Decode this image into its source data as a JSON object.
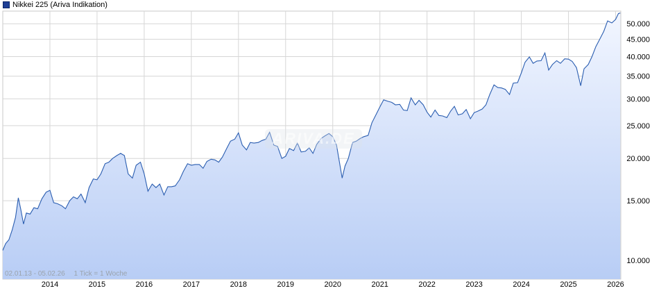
{
  "legend": {
    "label": "Nikkei 225 (Ariva Indikation)",
    "color": "#1f3f95"
  },
  "footer": {
    "range": "02.01.13 - 05.02.26",
    "tick": "1 Tick = 1 Woche"
  },
  "colors": {
    "line": "#2a5db0",
    "fill_top": "#f2f6ff",
    "fill_bottom": "#b8cdf5",
    "grid": "#d6d6d6"
  },
  "chart_data": {
    "type": "area",
    "yscale": "log",
    "ylim": [
      8800,
      54500
    ],
    "xlim": [
      2013.0,
      2026.11
    ],
    "ylabels": [
      {
        "v": 10000,
        "t": "10.000"
      },
      {
        "v": 15000,
        "t": "15.000"
      },
      {
        "v": 20000,
        "t": "20.000"
      },
      {
        "v": 25000,
        "t": "25.000"
      },
      {
        "v": 30000,
        "t": "30.000"
      },
      {
        "v": 35000,
        "t": "35.000"
      },
      {
        "v": 40000,
        "t": "40.000"
      },
      {
        "v": 45000,
        "t": "45.000"
      },
      {
        "v": 50000,
        "t": "50.000"
      }
    ],
    "xticks": [
      "2014",
      "2015",
      "2016",
      "2017",
      "2018",
      "2019",
      "2020",
      "2021",
      "2022",
      "2023",
      "2024",
      "2025",
      "2026"
    ],
    "series": [
      {
        "points": [
          [
            2013.0,
            10700
          ],
          [
            2013.06,
            11200
          ],
          [
            2013.13,
            11500
          ],
          [
            2013.2,
            12300
          ],
          [
            2013.27,
            13400
          ],
          [
            2013.33,
            15300
          ],
          [
            2013.38,
            14200
          ],
          [
            2013.44,
            12800
          ],
          [
            2013.5,
            13800
          ],
          [
            2013.58,
            13700
          ],
          [
            2013.66,
            14300
          ],
          [
            2013.74,
            14200
          ],
          [
            2013.83,
            15200
          ],
          [
            2013.92,
            15900
          ],
          [
            2014.0,
            16100
          ],
          [
            2014.08,
            14800
          ],
          [
            2014.16,
            14700
          ],
          [
            2014.25,
            14500
          ],
          [
            2014.33,
            14200
          ],
          [
            2014.42,
            15000
          ],
          [
            2014.5,
            15400
          ],
          [
            2014.58,
            15200
          ],
          [
            2014.66,
            15700
          ],
          [
            2014.75,
            14800
          ],
          [
            2014.83,
            16400
          ],
          [
            2014.92,
            17400
          ],
          [
            2015.0,
            17300
          ],
          [
            2015.08,
            18000
          ],
          [
            2015.17,
            19300
          ],
          [
            2015.25,
            19500
          ],
          [
            2015.33,
            20000
          ],
          [
            2015.42,
            20400
          ],
          [
            2015.5,
            20700
          ],
          [
            2015.58,
            20400
          ],
          [
            2015.66,
            18000
          ],
          [
            2015.75,
            17500
          ],
          [
            2015.83,
            19100
          ],
          [
            2015.92,
            19500
          ],
          [
            2016.0,
            18000
          ],
          [
            2016.08,
            16000
          ],
          [
            2016.17,
            16800
          ],
          [
            2016.25,
            16400
          ],
          [
            2016.33,
            16800
          ],
          [
            2016.42,
            15600
          ],
          [
            2016.5,
            16500
          ],
          [
            2016.58,
            16500
          ],
          [
            2016.66,
            16600
          ],
          [
            2016.75,
            17300
          ],
          [
            2016.83,
            18300
          ],
          [
            2016.92,
            19300
          ],
          [
            2017.0,
            19100
          ],
          [
            2017.08,
            19200
          ],
          [
            2017.17,
            19200
          ],
          [
            2017.25,
            18700
          ],
          [
            2017.33,
            19600
          ],
          [
            2017.42,
            19900
          ],
          [
            2017.5,
            19800
          ],
          [
            2017.58,
            19500
          ],
          [
            2017.66,
            20200
          ],
          [
            2017.75,
            21400
          ],
          [
            2017.83,
            22500
          ],
          [
            2017.92,
            22800
          ],
          [
            2018.0,
            23800
          ],
          [
            2018.08,
            21900
          ],
          [
            2018.17,
            21200
          ],
          [
            2018.25,
            22300
          ],
          [
            2018.33,
            22200
          ],
          [
            2018.42,
            22300
          ],
          [
            2018.5,
            22600
          ],
          [
            2018.58,
            22800
          ],
          [
            2018.66,
            23900
          ],
          [
            2018.75,
            21900
          ],
          [
            2018.83,
            21700
          ],
          [
            2018.92,
            20000
          ],
          [
            2019.0,
            20300
          ],
          [
            2019.08,
            21400
          ],
          [
            2019.17,
            21100
          ],
          [
            2019.25,
            22200
          ],
          [
            2019.33,
            20900
          ],
          [
            2019.42,
            21000
          ],
          [
            2019.5,
            21500
          ],
          [
            2019.58,
            20700
          ],
          [
            2019.66,
            22000
          ],
          [
            2019.75,
            22900
          ],
          [
            2019.83,
            23300
          ],
          [
            2019.92,
            23700
          ],
          [
            2020.0,
            23200
          ],
          [
            2020.08,
            21900
          ],
          [
            2020.2,
            17500
          ],
          [
            2020.26,
            19000
          ],
          [
            2020.33,
            20000
          ],
          [
            2020.42,
            22300
          ],
          [
            2020.5,
            22500
          ],
          [
            2020.58,
            22900
          ],
          [
            2020.66,
            23200
          ],
          [
            2020.75,
            23400
          ],
          [
            2020.83,
            25500
          ],
          [
            2020.92,
            27000
          ],
          [
            2021.0,
            28400
          ],
          [
            2021.08,
            29800
          ],
          [
            2021.17,
            29500
          ],
          [
            2021.25,
            29300
          ],
          [
            2021.33,
            28800
          ],
          [
            2021.42,
            28900
          ],
          [
            2021.5,
            27800
          ],
          [
            2021.58,
            27700
          ],
          [
            2021.66,
            30200
          ],
          [
            2021.75,
            28800
          ],
          [
            2021.83,
            29700
          ],
          [
            2021.92,
            28800
          ],
          [
            2022.0,
            27400
          ],
          [
            2022.08,
            26500
          ],
          [
            2022.17,
            27800
          ],
          [
            2022.25,
            26800
          ],
          [
            2022.33,
            26700
          ],
          [
            2022.42,
            26400
          ],
          [
            2022.5,
            27600
          ],
          [
            2022.58,
            28500
          ],
          [
            2022.66,
            26900
          ],
          [
            2022.75,
            27100
          ],
          [
            2022.83,
            27900
          ],
          [
            2022.92,
            26200
          ],
          [
            2023.0,
            27300
          ],
          [
            2023.08,
            27600
          ],
          [
            2023.17,
            28000
          ],
          [
            2023.25,
            28800
          ],
          [
            2023.33,
            30900
          ],
          [
            2023.42,
            33000
          ],
          [
            2023.5,
            32400
          ],
          [
            2023.58,
            32300
          ],
          [
            2023.66,
            32000
          ],
          [
            2023.75,
            30900
          ],
          [
            2023.83,
            33400
          ],
          [
            2023.92,
            33500
          ],
          [
            2024.0,
            35800
          ],
          [
            2024.08,
            38500
          ],
          [
            2024.17,
            39900
          ],
          [
            2024.25,
            38200
          ],
          [
            2024.33,
            38800
          ],
          [
            2024.42,
            38900
          ],
          [
            2024.5,
            41000
          ],
          [
            2024.58,
            36500
          ],
          [
            2024.66,
            37900
          ],
          [
            2024.75,
            38900
          ],
          [
            2024.83,
            38200
          ],
          [
            2024.92,
            39400
          ],
          [
            2025.0,
            39300
          ],
          [
            2025.08,
            38700
          ],
          [
            2025.17,
            37100
          ],
          [
            2025.26,
            32800
          ],
          [
            2025.33,
            36800
          ],
          [
            2025.42,
            37900
          ],
          [
            2025.5,
            40000
          ],
          [
            2025.58,
            42800
          ],
          [
            2025.66,
            44900
          ],
          [
            2025.75,
            47500
          ],
          [
            2025.83,
            51000
          ],
          [
            2025.92,
            50300
          ],
          [
            2026.0,
            51500
          ],
          [
            2026.06,
            53600
          ],
          [
            2026.1,
            53800
          ]
        ]
      }
    ]
  }
}
